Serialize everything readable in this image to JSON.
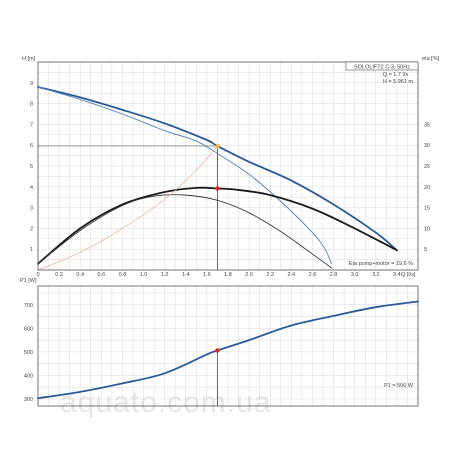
{
  "chart_data": [
    {
      "type": "line",
      "title": "SOLOLIFT2 C-3, 50Hz",
      "annotations": [
        "Q = 1.7 l/s",
        "H = 5.961 m",
        "Eta pump+motor = 19.6 %"
      ],
      "xlabel": "Q [l/s]",
      "ylabel": "H [m]",
      "y2label": "eta [%]",
      "xlim": [
        0,
        3.6
      ],
      "ylim": [
        0,
        10
      ],
      "y2lim": [
        0,
        50
      ],
      "xticks": [
        "0",
        "0.2",
        "0.4",
        "0.6",
        "0.8",
        "1.0",
        "1.2",
        "1.4",
        "1.6",
        "1.8",
        "2.0",
        "2.2",
        "2.4",
        "2.6",
        "2.8",
        "3.0",
        "3.2",
        "3.4"
      ],
      "yticks": [
        "1",
        "2",
        "3",
        "4",
        "5",
        "6",
        "7",
        "8",
        "9"
      ],
      "y2ticks": [
        "5",
        "10",
        "15",
        "20",
        "25",
        "30",
        "35"
      ],
      "series": [
        {
          "name": "",
          "role": "H curve",
          "color": "#2a5a9a",
          "width": 1.8,
          "x": [
            0,
            0.4,
            0.8,
            1.2,
            1.6,
            1.7,
            2.0,
            2.4,
            2.8,
            3.2,
            3.4
          ],
          "y": [
            8.8,
            8.3,
            7.7,
            7.05,
            6.25,
            5.96,
            5.2,
            4.3,
            3.15,
            1.8,
            0.95
          ]
        },
        {
          "name": "",
          "role": "H curve lower",
          "color": "#5080c0",
          "width": 0.9,
          "x": [
            0,
            0.4,
            0.8,
            1.2,
            1.5,
            1.7,
            2.0,
            2.3,
            2.6,
            2.72,
            2.78
          ],
          "y": [
            8.8,
            8.2,
            7.5,
            6.7,
            6.2,
            5.6,
            4.6,
            3.3,
            1.8,
            1.0,
            0.3
          ]
        },
        {
          "name": "",
          "role": "Eta pump+motor",
          "color": "#1a1a1a",
          "width": 1.8,
          "x": [
            0,
            0.4,
            0.8,
            1.2,
            1.5,
            1.7,
            1.9,
            2.2,
            2.6,
            3.0,
            3.4
          ],
          "y": [
            0.3,
            2.0,
            3.15,
            3.75,
            3.95,
            3.92,
            3.85,
            3.6,
            2.95,
            2.0,
            0.95
          ]
        },
        {
          "name": "",
          "role": "Eta lower",
          "color": "#3a3a3a",
          "width": 0.9,
          "x": [
            0,
            0.4,
            0.8,
            1.1,
            1.4,
            1.7,
            2.0,
            2.3,
            2.55,
            2.7,
            2.78
          ],
          "y": [
            0.3,
            1.9,
            3.1,
            3.55,
            3.6,
            3.35,
            2.75,
            1.85,
            0.95,
            0.4,
            0.1
          ]
        },
        {
          "name": "",
          "role": "Point curve",
          "color": "#f0a898",
          "width": 0.7,
          "x": [
            0,
            0.4,
            0.8,
            1.2,
            1.5,
            1.7
          ],
          "y": [
            0,
            0.85,
            2.0,
            3.4,
            4.8,
            5.96
          ]
        }
      ],
      "operating_point": {
        "x": 1.7,
        "y": 5.96,
        "eta_y": 3.92
      }
    },
    {
      "type": "line",
      "ylabel": "P1 [W]",
      "annotations": [
        "P1 = 506 W"
      ],
      "xlim": [
        0,
        3.6
      ],
      "ylim": [
        270,
        780
      ],
      "yticks": [
        "300",
        "400",
        "500",
        "600",
        "700"
      ],
      "series": [
        {
          "name": "",
          "role": "P1",
          "color": "#2a5a9a",
          "width": 1.8,
          "x": [
            0,
            0.4,
            0.8,
            1.2,
            1.6,
            1.7,
            2.0,
            2.4,
            2.8,
            3.2,
            3.6
          ],
          "y": [
            303,
            330,
            366,
            409,
            489,
            506,
            550,
            612,
            653,
            690,
            714
          ]
        }
      ],
      "operating_point": {
        "x": 1.7,
        "y": 506
      }
    }
  ],
  "watermark": "aquato.com.ua"
}
